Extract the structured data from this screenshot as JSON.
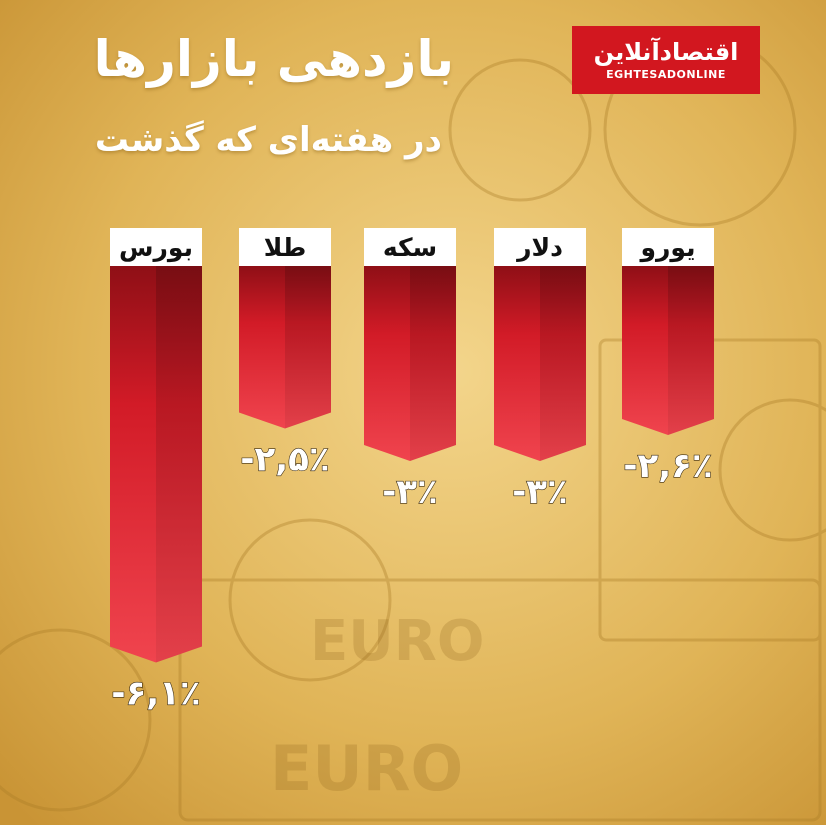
{
  "title": "بازدهی بازارها",
  "subtitle": "در هفته‌ای که گذشت",
  "logo": {
    "name": "اقتصادآنلاین",
    "sub": "EGHTESADONLINE"
  },
  "colors": {
    "bar_dark": "#8f0f16",
    "bar_mid": "#d21b27",
    "bar_light": "#f0444e",
    "label_bg": "#ffffff",
    "background": "#e2b85a"
  },
  "background_text": {
    "note_1": "EURO",
    "note_2": "EURO"
  },
  "chart_data": {
    "type": "bar",
    "orientation": "vertical-downward",
    "categories": [
      "بورس",
      "طلا",
      "سکه",
      "دلار",
      "یورو"
    ],
    "values": [
      -6.1,
      -2.5,
      -3,
      -3,
      -2.6
    ],
    "value_labels": [
      "-۶,۱٪",
      "-۲,۵٪",
      "-۳٪",
      "-۳٪",
      "-۲,۶٪"
    ],
    "title": "بازدهی بازارها",
    "subtitle": "در هفته‌ای که گذشت",
    "unit": "%",
    "grid": false,
    "legend": "none"
  }
}
